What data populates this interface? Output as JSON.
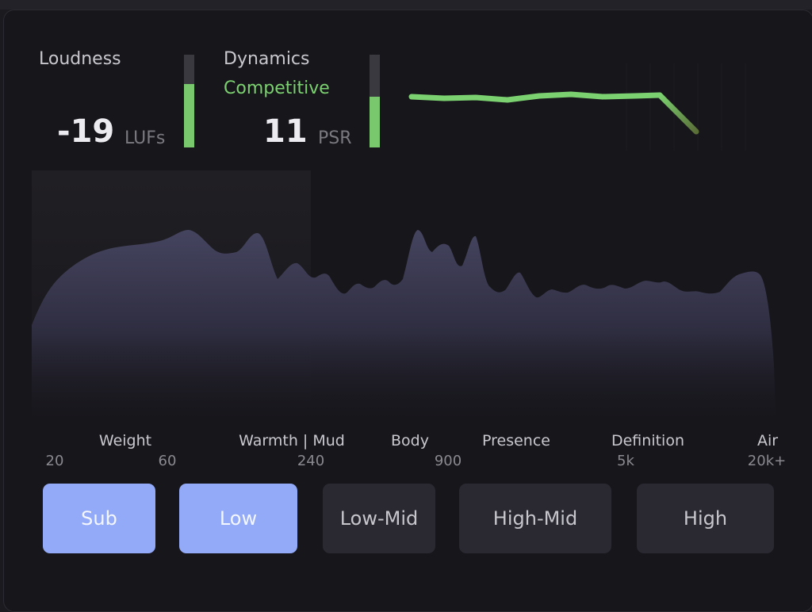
{
  "loudness": {
    "label": "Loudness",
    "value": "-19",
    "unit": "LUFs",
    "meter_level": 0.68
  },
  "dynamics": {
    "label": "Dynamics",
    "status": "Competitive",
    "value": "11",
    "unit": "PSR",
    "meter_level": 0.55
  },
  "colors": {
    "accent_green": "#7bd16f",
    "active_button": "#92aaf7",
    "inactive_button": "#2a2931",
    "spectrum_fill": "#3f3e59"
  },
  "band_labels": [
    "Weight",
    "Warmth | Mud",
    "Body",
    "Presence",
    "Definition",
    "Air"
  ],
  "frequency_labels": [
    "20",
    "60",
    "240",
    "900",
    "5k",
    "20k+"
  ],
  "buttons": [
    {
      "label": "Sub",
      "active": true
    },
    {
      "label": "Low",
      "active": true
    },
    {
      "label": "Low-Mid",
      "active": false
    },
    {
      "label": "High-Mid",
      "active": false
    },
    {
      "label": "High",
      "active": false
    }
  ]
}
